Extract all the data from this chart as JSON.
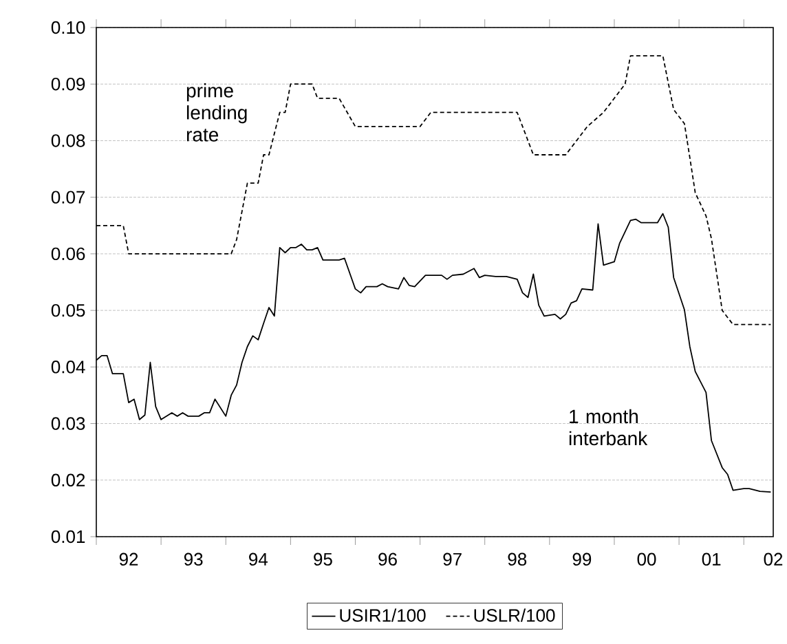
{
  "chart_data": {
    "type": "line",
    "xlim": [
      "1992-01-01",
      "2002-06-15"
    ],
    "ylim": [
      0.01,
      0.1
    ],
    "yticks": [
      {
        "value": 0.01,
        "label": "0.01"
      },
      {
        "value": 0.02,
        "label": "0.02"
      },
      {
        "value": 0.03,
        "label": "0.03"
      },
      {
        "value": 0.04,
        "label": "0.04"
      },
      {
        "value": 0.05,
        "label": "0.05"
      },
      {
        "value": 0.06,
        "label": "0.06"
      },
      {
        "value": 0.07,
        "label": "0.07"
      },
      {
        "value": 0.08,
        "label": "0.08"
      },
      {
        "value": 0.09,
        "label": "0.09"
      },
      {
        "value": 0.1,
        "label": "0.10"
      }
    ],
    "xticks": [
      {
        "value": "1992-01-01",
        "label": null
      },
      {
        "value": "1993-01-01",
        "label": null
      },
      {
        "value": "1994-01-01",
        "label": null
      },
      {
        "value": "1995-01-01",
        "label": null
      },
      {
        "value": "1996-01-01",
        "label": null
      },
      {
        "value": "1997-01-01",
        "label": null
      },
      {
        "value": "1998-01-01",
        "label": null
      },
      {
        "value": "1999-01-01",
        "label": null
      },
      {
        "value": "2000-01-01",
        "label": null
      },
      {
        "value": "2001-01-01",
        "label": null
      },
      {
        "value": "2002-01-01",
        "label": null
      },
      {
        "value": "1992-07-01",
        "label": "92"
      },
      {
        "value": "1993-07-01",
        "label": "93"
      },
      {
        "value": "1994-07-01",
        "label": "94"
      },
      {
        "value": "1995-07-01",
        "label": "95"
      },
      {
        "value": "1996-07-01",
        "label": "96"
      },
      {
        "value": "1997-07-01",
        "label": "97"
      },
      {
        "value": "1998-07-01",
        "label": "98"
      },
      {
        "value": "1999-07-01",
        "label": "99"
      },
      {
        "value": "2000-07-01",
        "label": "00"
      },
      {
        "value": "2001-07-01",
        "label": "01"
      },
      {
        "value": "2002-06-15",
        "label": "02"
      }
    ],
    "grid": "y",
    "legend": "bottom",
    "annotations": [
      "prime lending rate",
      "1 month interbank"
    ],
    "series": [
      {
        "name": "USIR1/100",
        "color": "#000000",
        "line_style": "solid",
        "x": [
          "1992-01",
          "1992-02",
          "1992-03",
          "1992-04",
          "1992-06",
          "1992-07",
          "1992-08",
          "1992-09",
          "1992-10",
          "1992-11",
          "1992-12",
          "1993-01",
          "1993-03",
          "1993-04",
          "1993-05",
          "1993-06",
          "1993-08",
          "1993-09",
          "1993-10",
          "1993-11",
          "1994-01",
          "1994-02",
          "1994-03",
          "1994-04",
          "1994-05",
          "1994-06",
          "1994-07",
          "1994-08",
          "1994-09",
          "1994-10",
          "1994-11",
          "1994-12",
          "1995-01",
          "1995-02",
          "1995-03",
          "1995-04",
          "1995-05",
          "1995-06",
          "1995-07",
          "1995-10",
          "1995-11",
          "1996-01",
          "1996-02",
          "1996-03",
          "1996-05",
          "1996-06",
          "1996-07",
          "1996-09",
          "1996-10",
          "1996-11",
          "1996-12",
          "1997-02",
          "1997-05",
          "1997-06",
          "1997-07",
          "1997-09",
          "1997-11",
          "1997-12",
          "1998-01",
          "1998-03",
          "1998-05",
          "1998-07",
          "1998-08",
          "1998-09",
          "1998-10",
          "1998-11",
          "1998-12",
          "1999-02",
          "1999-03",
          "1999-04",
          "1999-05",
          "1999-06",
          "1999-07",
          "1999-09",
          "1999-10",
          "1999-11",
          "2000-01",
          "2000-02",
          "2000-04",
          "2000-05",
          "2000-06",
          "2000-09",
          "2000-10",
          "2000-11",
          "2000-12",
          "2001-02",
          "2001-03",
          "2001-04",
          "2001-06",
          "2001-07",
          "2001-09",
          "2001-10",
          "2001-11",
          "2002-01",
          "2002-02",
          "2002-04",
          "2002-06"
        ],
        "values": [
          0.0412,
          0.042,
          0.042,
          0.0388,
          0.0388,
          0.0337,
          0.0343,
          0.0307,
          0.0315,
          0.0408,
          0.033,
          0.0307,
          0.0319,
          0.0313,
          0.0319,
          0.0313,
          0.0313,
          0.0319,
          0.0319,
          0.0343,
          0.0313,
          0.035,
          0.0368,
          0.0408,
          0.0436,
          0.0455,
          0.0448,
          0.0477,
          0.0505,
          0.049,
          0.0611,
          0.0602,
          0.0611,
          0.0611,
          0.0617,
          0.0607,
          0.0607,
          0.0611,
          0.0589,
          0.0589,
          0.0592,
          0.0538,
          0.0531,
          0.0542,
          0.0542,
          0.0547,
          0.0542,
          0.0538,
          0.0558,
          0.0544,
          0.0542,
          0.0562,
          0.0562,
          0.0555,
          0.0562,
          0.0564,
          0.0574,
          0.0558,
          0.0562,
          0.056,
          0.056,
          0.0555,
          0.0531,
          0.0523,
          0.0564,
          0.0509,
          0.049,
          0.0493,
          0.0485,
          0.0493,
          0.0513,
          0.0517,
          0.0538,
          0.0536,
          0.0653,
          0.058,
          0.0586,
          0.0619,
          0.0659,
          0.0661,
          0.0655,
          0.0655,
          0.0671,
          0.0647,
          0.0558,
          0.0501,
          0.0436,
          0.0392,
          0.0355,
          0.027,
          0.0222,
          0.021,
          0.0182,
          0.0185,
          0.0185,
          0.018,
          0.0179
        ]
      },
      {
        "name": "USLR/100",
        "color": "#000000",
        "line_style": "dashed",
        "x": [
          "1992-01",
          "1992-06",
          "1992-07",
          "1994-02",
          "1994-03",
          "1994-05",
          "1994-07",
          "1994-08",
          "1994-09",
          "1994-11",
          "1994-12",
          "1995-01",
          "1995-05",
          "1995-06",
          "1995-10",
          "1996-01",
          "1997-01",
          "1997-03",
          "1998-07",
          "1998-10",
          "1999-04",
          "1999-06",
          "1999-08",
          "1999-11",
          "2000-01",
          "2000-03",
          "2000-04",
          "2000-10",
          "2000-12",
          "2001-02",
          "2001-03",
          "2001-04",
          "2001-06",
          "2001-07",
          "2001-09",
          "2001-11",
          "2002-06"
        ],
        "values": [
          0.065,
          0.065,
          0.06,
          0.06,
          0.0625,
          0.0725,
          0.0725,
          0.0775,
          0.0775,
          0.085,
          0.085,
          0.09,
          0.09,
          0.0875,
          0.0875,
          0.0825,
          0.0825,
          0.085,
          0.085,
          0.0775,
          0.0775,
          0.08,
          0.0825,
          0.085,
          0.0875,
          0.09,
          0.095,
          0.095,
          0.0855,
          0.083,
          0.077,
          0.0708,
          0.0667,
          0.0627,
          0.05,
          0.0475,
          0.0475
        ]
      }
    ]
  }
}
